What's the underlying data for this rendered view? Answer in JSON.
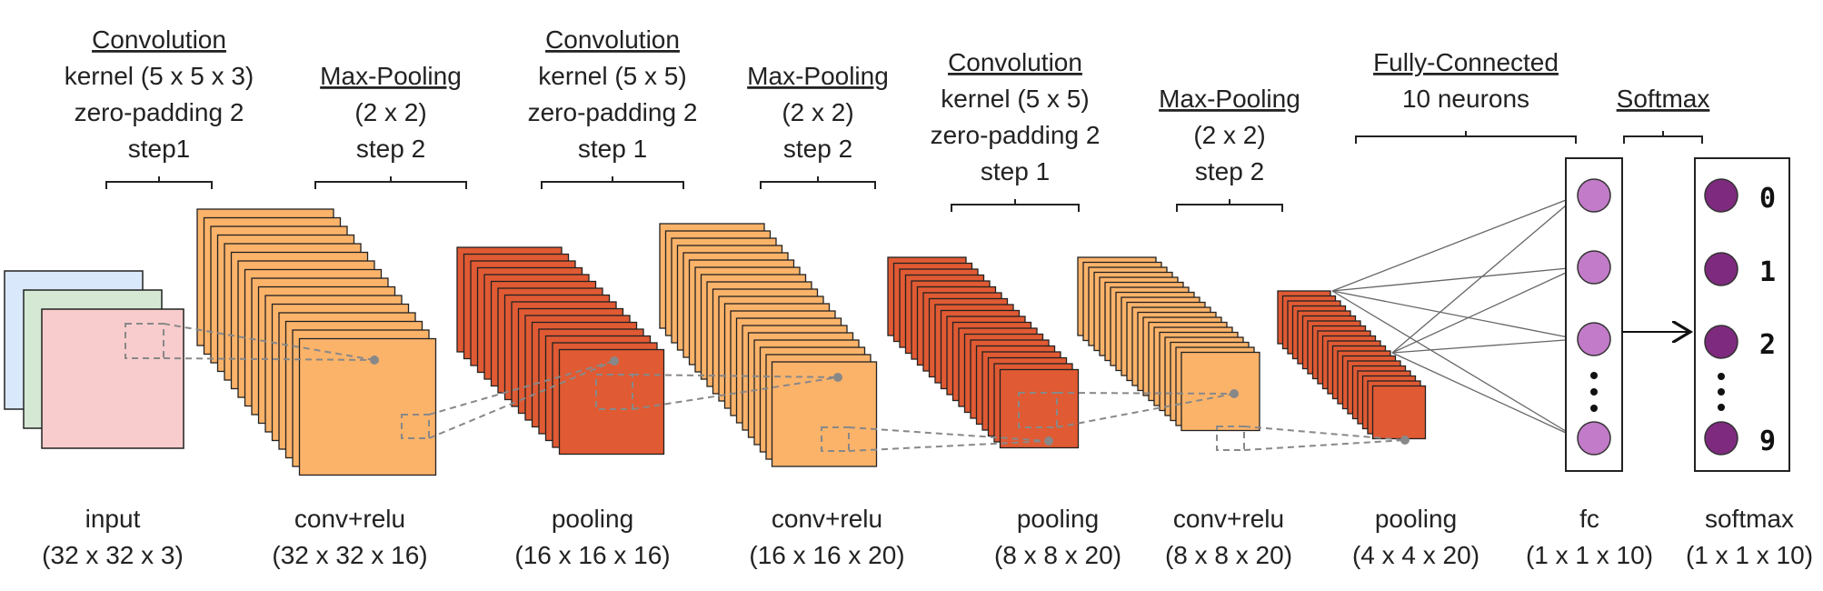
{
  "layers": [
    {
      "name": "input",
      "dims": "(32 x 32 x 3)"
    },
    {
      "name": "conv+relu",
      "dims": "(32 x 32 x 16)"
    },
    {
      "name": "pooling",
      "dims": "(16 x 16 x 16)"
    },
    {
      "name": "conv+relu",
      "dims": "(16 x 16 x 20)"
    },
    {
      "name": "pooling",
      "dims": "(8 x 8 x 20)"
    },
    {
      "name": "conv+relu",
      "dims": "(8 x 8 x 20)"
    },
    {
      "name": "pooling",
      "dims": "(4 x 4 x 20)"
    },
    {
      "name": "fc",
      "dims": "(1 x 1 x 10)"
    },
    {
      "name": "softmax",
      "dims": "(1 x 1 x 10)"
    }
  ],
  "operations": [
    {
      "title": "Convolution",
      "lines": [
        "kernel (5 x 5 x 3)",
        "zero-padding 2",
        "step1"
      ]
    },
    {
      "title": "Max-Pooling",
      "lines": [
        "(2 x 2)",
        "step 2"
      ]
    },
    {
      "title": "Convolution",
      "lines": [
        "kernel (5 x 5)",
        "zero-padding 2",
        "step 1"
      ]
    },
    {
      "title": "Max-Pooling",
      "lines": [
        "(2 x 2)",
        "step 2"
      ]
    },
    {
      "title": "Convolution",
      "lines": [
        "kernel (5 x 5)",
        "zero-padding 2",
        "step 1"
      ]
    },
    {
      "title": "Max-Pooling",
      "lines": [
        "(2 x 2)",
        "step 2"
      ]
    },
    {
      "title": "Fully-Connected",
      "lines": [
        "10 neurons"
      ]
    },
    {
      "title": "Softmax",
      "lines": []
    }
  ],
  "softmax_outputs": [
    "0",
    "1",
    "2",
    "9"
  ],
  "colors": {
    "conv": "#fbb36a",
    "pool": "#e05a33",
    "input_red": "#f8cccc",
    "input_green": "#d5e8d4",
    "input_blue": "#dae8fc",
    "fc_neuron": "#c27bc8",
    "softmax_neuron": "#7e2a7e"
  }
}
